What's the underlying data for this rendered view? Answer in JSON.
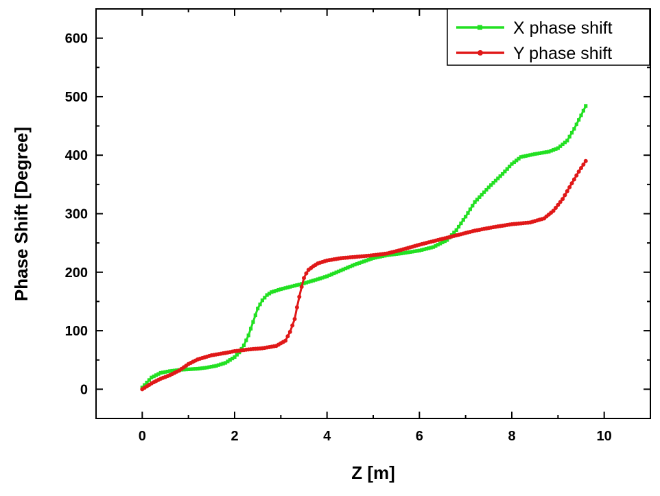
{
  "chart_data": {
    "type": "line",
    "title": "",
    "xlabel": "Z [m]",
    "ylabel": "Phase Shift [Degree]",
    "xlim": [
      -1,
      11
    ],
    "ylim": [
      -50,
      650
    ],
    "xticks": [
      0,
      2,
      4,
      6,
      8,
      10
    ],
    "yticks": [
      0,
      100,
      200,
      300,
      400,
      500,
      600
    ],
    "xtick_labels": [
      "0",
      "2",
      "4",
      "6",
      "8",
      "10"
    ],
    "ytick_labels": [
      "0",
      "100",
      "200",
      "300",
      "400",
      "500",
      "600"
    ],
    "grid": false,
    "legend_position": "top-right",
    "series": [
      {
        "name": "X phase shift",
        "color": "#22e022",
        "marker": "square",
        "x": [
          0,
          0.2,
          0.4,
          0.6,
          0.8,
          1.0,
          1.2,
          1.4,
          1.6,
          1.8,
          2.0,
          2.1,
          2.2,
          2.3,
          2.4,
          2.5,
          2.6,
          2.7,
          2.8,
          3.0,
          3.2,
          3.5,
          3.8,
          4.0,
          4.3,
          4.6,
          5.0,
          5.3,
          5.6,
          6.0,
          6.3,
          6.6,
          6.8,
          7.0,
          7.2,
          7.5,
          7.8,
          8.0,
          8.2,
          8.5,
          8.8,
          9.0,
          9.2,
          9.35,
          9.5,
          9.6
        ],
        "y": [
          3,
          20,
          28,
          31,
          33,
          34,
          35,
          37,
          40,
          45,
          55,
          63,
          75,
          92,
          115,
          138,
          152,
          161,
          166,
          171,
          175,
          181,
          188,
          193,
          203,
          213,
          224,
          229,
          232,
          237,
          243,
          255,
          272,
          295,
          320,
          345,
          368,
          385,
          397,
          402,
          406,
          412,
          425,
          445,
          468,
          484
        ]
      },
      {
        "name": "Y phase shift",
        "color": "#e01818",
        "marker": "circle",
        "x": [
          0,
          0.2,
          0.4,
          0.6,
          0.8,
          1.0,
          1.2,
          1.5,
          1.8,
          2.0,
          2.3,
          2.6,
          2.9,
          3.1,
          3.2,
          3.3,
          3.35,
          3.4,
          3.45,
          3.5,
          3.55,
          3.6,
          3.7,
          3.8,
          4.0,
          4.3,
          4.6,
          5.0,
          5.3,
          5.6,
          6.0,
          6.4,
          6.8,
          7.2,
          7.6,
          8.0,
          8.4,
          8.7,
          8.9,
          9.1,
          9.3,
          9.45,
          9.6
        ],
        "y": [
          0,
          10,
          18,
          24,
          32,
          43,
          51,
          58,
          62,
          65,
          68,
          70,
          74,
          83,
          98,
          120,
          140,
          158,
          175,
          190,
          198,
          204,
          210,
          215,
          220,
          224,
          226,
          229,
          232,
          238,
          247,
          255,
          263,
          271,
          277,
          282,
          285,
          292,
          305,
          325,
          352,
          372,
          390
        ]
      }
    ]
  }
}
